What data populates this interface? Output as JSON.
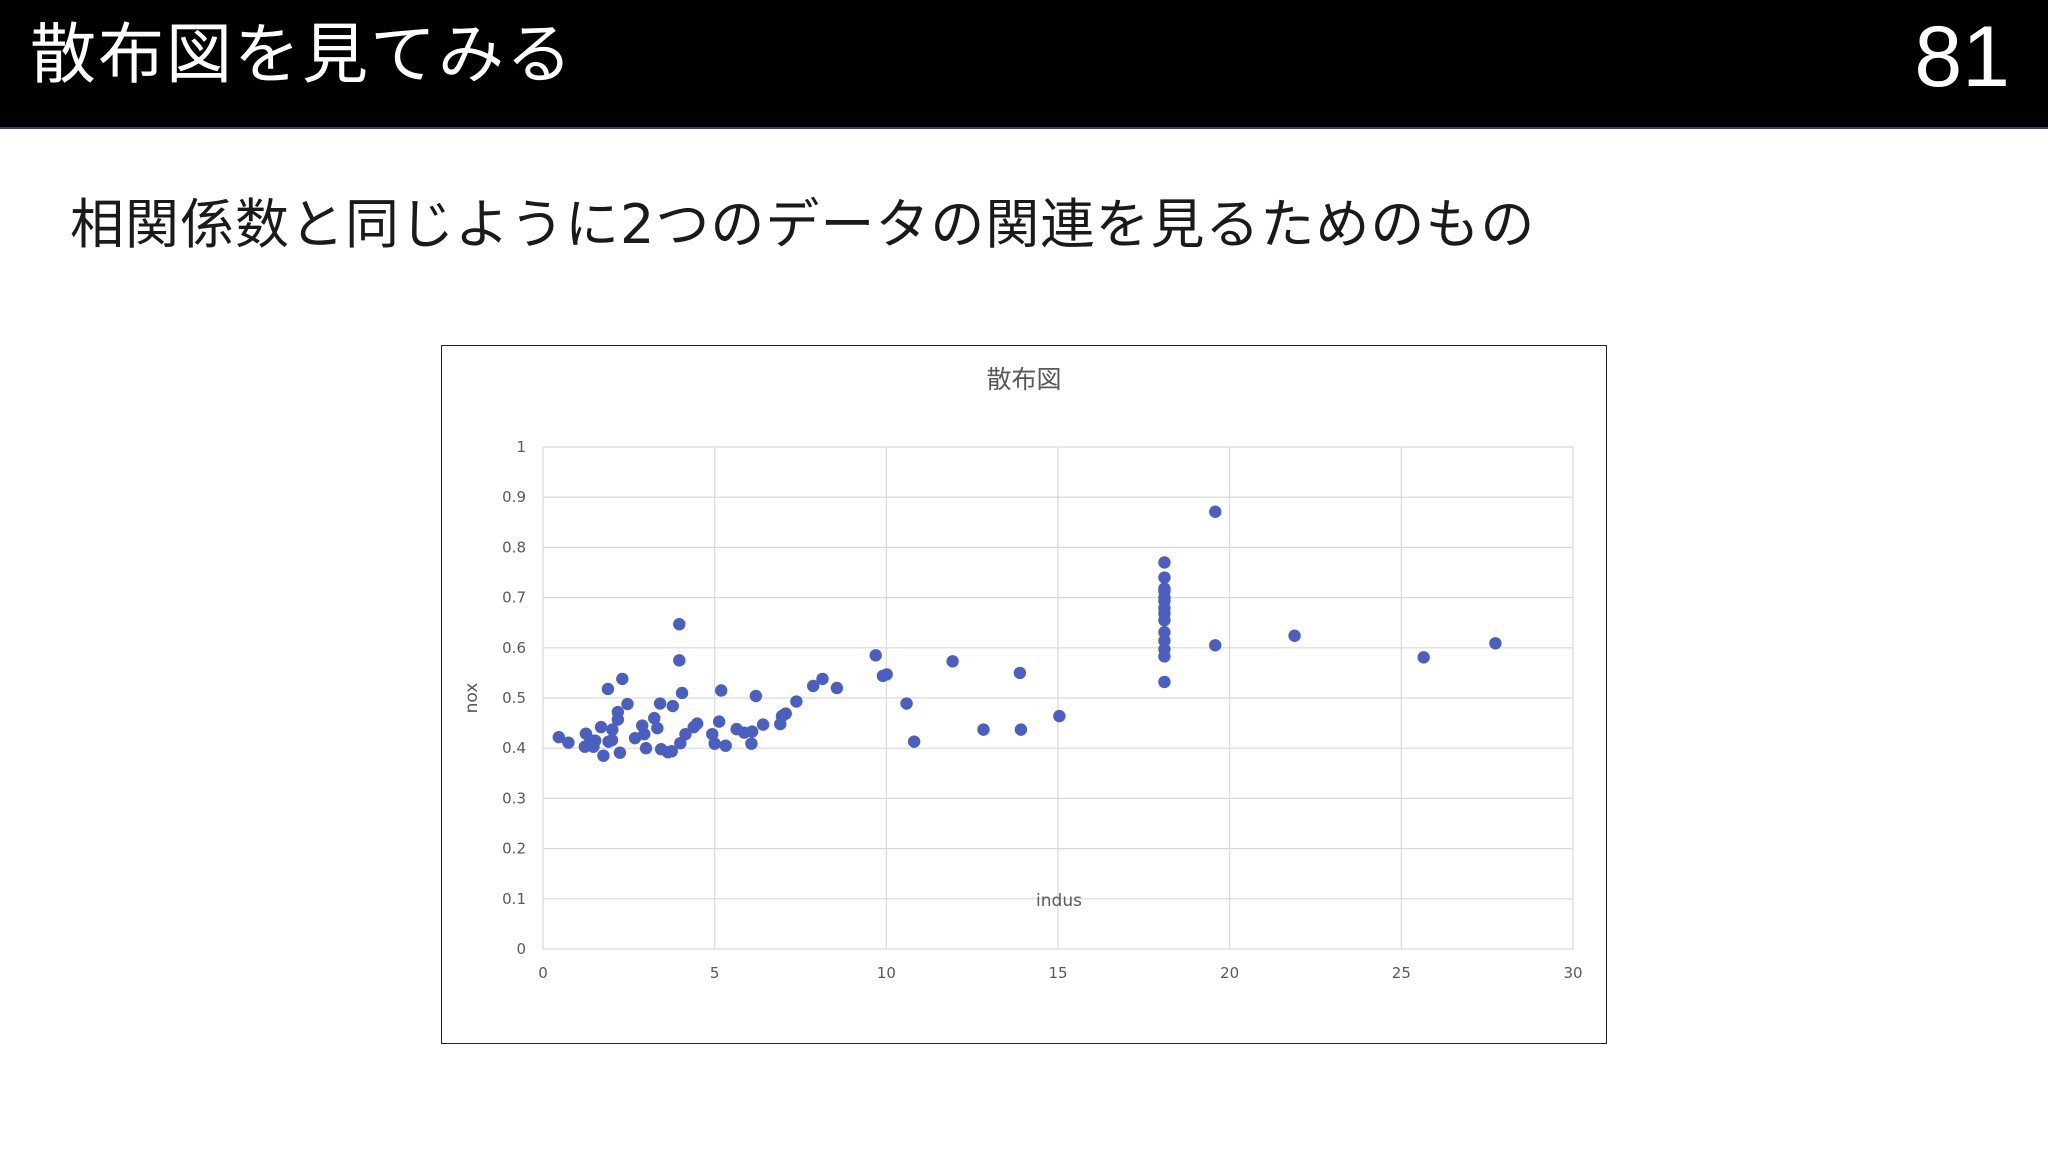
{
  "header": {
    "title": "散布図を見てみる",
    "page_number": "81"
  },
  "subtitle": "相関係数と同じように2つのデータの関連を見るためのもの",
  "colors": {
    "header_bg": "#000000",
    "point": "#4a5fc1",
    "grid": "#d9d9d9",
    "text": "#595959"
  },
  "chart_data": {
    "type": "scatter",
    "title": "散布図",
    "xlabel": "indus",
    "ylabel": "nox",
    "xlim": [
      0,
      30
    ],
    "ylim": [
      0,
      1
    ],
    "x_ticks": [
      "0",
      "5",
      "10",
      "15",
      "20",
      "25",
      "30"
    ],
    "y_ticks": [
      "0",
      "0.1",
      "0.2",
      "0.3",
      "0.4",
      "0.5",
      "0.6",
      "0.7",
      "0.8",
      "0.9",
      "1"
    ],
    "grid": true,
    "series": [
      {
        "x": [
          0.46,
          0.74,
          1.22,
          1.25,
          1.38,
          1.47,
          1.52,
          1.69,
          1.76,
          1.89,
          1.91,
          2.01,
          2.02,
          2.18,
          2.18,
          2.24,
          2.31,
          2.46,
          2.68,
          2.89,
          2.95,
          3.0,
          3.24,
          3.33,
          3.41,
          3.44,
          3.64,
          3.75,
          3.78,
          3.97,
          3.97,
          4.0,
          4.05,
          4.15,
          4.39,
          4.49,
          4.93,
          5.0,
          5.13,
          5.19,
          5.32,
          5.64,
          5.86,
          6.07,
          6.09,
          6.2,
          6.41,
          6.91,
          6.96,
          7.07,
          7.38,
          7.87,
          8.14,
          8.56,
          9.69,
          9.9,
          10.01,
          10.59,
          10.81,
          11.93,
          12.83,
          13.89,
          13.92,
          15.04,
          18.1,
          18.1,
          18.1,
          18.1,
          18.1,
          18.1,
          18.1,
          18.1,
          18.1,
          18.1,
          18.1,
          18.1,
          18.1,
          18.1,
          19.58,
          19.58,
          21.89,
          25.65,
          27.74
        ],
        "y": [
          0.422,
          0.411,
          0.403,
          0.429,
          0.416,
          0.403,
          0.415,
          0.442,
          0.385,
          0.518,
          0.413,
          0.416,
          0.437,
          0.472,
          0.457,
          0.391,
          0.538,
          0.488,
          0.42,
          0.445,
          0.428,
          0.4,
          0.46,
          0.44,
          0.489,
          0.398,
          0.392,
          0.394,
          0.484,
          0.575,
          0.647,
          0.41,
          0.51,
          0.428,
          0.442,
          0.449,
          0.428,
          0.409,
          0.453,
          0.515,
          0.405,
          0.438,
          0.431,
          0.409,
          0.433,
          0.504,
          0.447,
          0.448,
          0.464,
          0.469,
          0.493,
          0.524,
          0.538,
          0.52,
          0.585,
          0.544,
          0.547,
          0.489,
          0.413,
          0.573,
          0.437,
          0.55,
          0.437,
          0.464,
          0.532,
          0.583,
          0.597,
          0.614,
          0.631,
          0.655,
          0.668,
          0.679,
          0.693,
          0.7,
          0.713,
          0.718,
          0.74,
          0.77,
          0.605,
          0.871,
          0.624,
          0.581,
          0.609
        ]
      }
    ]
  }
}
